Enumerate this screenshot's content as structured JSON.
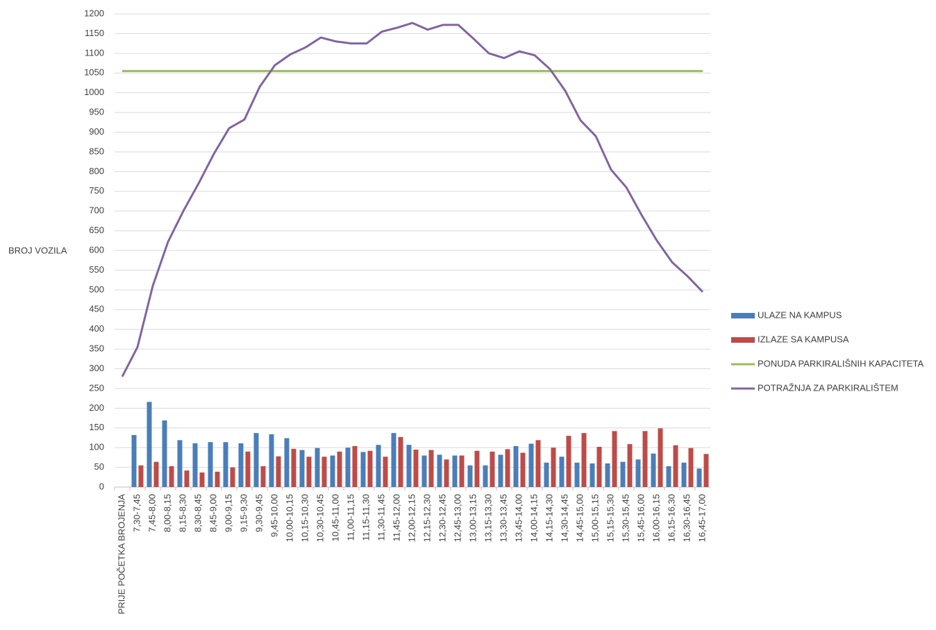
{
  "chart_data": {
    "type": "bar",
    "y_label": "BROJ VOZILA",
    "categories": [
      "PRIJE POČETKA BROJENJA",
      "7,30-7,45",
      "7,45-8,00",
      "8,00-8,15",
      "8,15-8,30",
      "8,30-8,45",
      "8,45-9,00",
      "9,00-9,15",
      "9,15-9,30",
      "9,30-9,45",
      "9,45-10,00",
      "10,00-10,15",
      "10,15-10,30",
      "10,30-10,45",
      "10,45-11,00",
      "11,00-11,15",
      "11,15-11,30",
      "11,30-11,45",
      "11,45-12,00",
      "12,00-12,15",
      "12,15-12,30",
      "12,30-12,45",
      "12,45-13,00",
      "13,00-13,15",
      "13,15-13,30",
      "13,30-13,45",
      "13,45-14,00",
      "14,00-14,15",
      "14,15-14,30",
      "14,30-14,45",
      "14,45-15,00",
      "15,00-15,15",
      "15,15-15,30",
      "15,30-15,45",
      "15,45-16,00",
      "16,00-16,15",
      "16,15-16,30",
      "16,30-16,45",
      "16,45-17,00"
    ],
    "series": [
      {
        "name": "ULAZE NA KAMPUS",
        "type": "bar",
        "color": "#4a7ebb",
        "values": [
          null,
          132,
          216,
          169,
          119,
          111,
          114,
          114,
          111,
          137,
          134,
          124,
          94,
          99,
          80,
          100,
          89,
          107,
          137,
          107,
          80,
          82,
          80,
          55,
          55,
          82,
          104,
          110,
          62,
          77,
          62,
          60,
          60,
          64,
          70,
          85,
          53,
          62,
          47
        ]
      },
      {
        "name": "IZLAZE SA KAMPUSA",
        "type": "bar",
        "color": "#be4b48",
        "values": [
          null,
          55,
          64,
          53,
          42,
          37,
          39,
          50,
          90,
          53,
          78,
          97,
          77,
          77,
          90,
          104,
          92,
          77,
          127,
          95,
          94,
          70,
          80,
          92,
          90,
          96,
          87,
          119,
          100,
          130,
          137,
          102,
          142,
          109,
          142,
          149,
          106,
          99,
          84
        ]
      },
      {
        "name": "PONUDA PARKIRALIŠNIH KAPACITETA",
        "type": "line",
        "color": "#9bbb59",
        "values": [
          1055,
          1055,
          1055,
          1055,
          1055,
          1055,
          1055,
          1055,
          1055,
          1055,
          1055,
          1055,
          1055,
          1055,
          1055,
          1055,
          1055,
          1055,
          1055,
          1055,
          1055,
          1055,
          1055,
          1055,
          1055,
          1055,
          1055,
          1055,
          1055,
          1055,
          1055,
          1055,
          1055,
          1055,
          1055,
          1055,
          1055,
          1055,
          1055
        ]
      },
      {
        "name": "POTRAŽNJA ZA PARKIRALIŠTEM",
        "type": "line",
        "color": "#8064a2",
        "values": [
          280,
          355,
          510,
          622,
          700,
          770,
          845,
          910,
          932,
          1015,
          1070,
          1097,
          1115,
          1140,
          1130,
          1125,
          1125,
          1155,
          1165,
          1177,
          1160,
          1172,
          1172,
          1137,
          1100,
          1088,
          1105,
          1095,
          1060,
          1005,
          930,
          890,
          805,
          760,
          690,
          625,
          570,
          535,
          495
        ]
      }
    ],
    "ylim": [
      0,
      1200
    ],
    "yticks": [
      0,
      50,
      100,
      150,
      200,
      250,
      300,
      350,
      400,
      450,
      500,
      550,
      600,
      650,
      700,
      750,
      800,
      850,
      900,
      950,
      1000,
      1050,
      1100,
      1150,
      1200
    ],
    "grid": true,
    "legend": "right"
  }
}
